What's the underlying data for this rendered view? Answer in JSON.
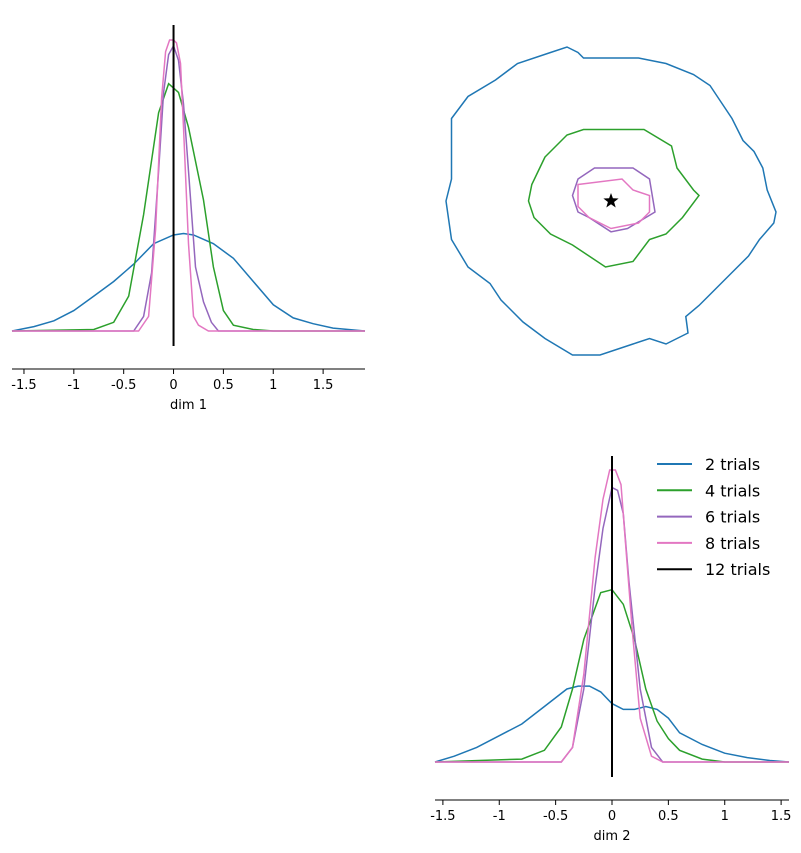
{
  "chart_data": [
    {
      "type": "line",
      "panel": "top-left",
      "xlabel": "dim 1",
      "xlim": [
        -1.62,
        1.92
      ],
      "ylim": [
        0,
        1
      ],
      "xtick_labels": [
        "-1.5",
        "-1",
        "-0.5",
        "0",
        "0.5",
        "1",
        "1.5"
      ],
      "xtick_values": [
        -1.5,
        -1,
        -0.5,
        0,
        0.5,
        1,
        1.5
      ],
      "reference_line": {
        "x": 0,
        "label": "12 trials",
        "color": "#000000"
      },
      "series": [
        {
          "name": "2 trials",
          "color": "#1f77b4",
          "x": [
            -1.62,
            -1.4,
            -1.2,
            -1.0,
            -0.8,
            -0.6,
            -0.4,
            -0.2,
            0.0,
            0.1,
            0.2,
            0.4,
            0.6,
            0.8,
            1.0,
            1.2,
            1.4,
            1.6,
            1.92
          ],
          "y": [
            0.0,
            0.015,
            0.035,
            0.07,
            0.12,
            0.17,
            0.23,
            0.3,
            0.33,
            0.335,
            0.33,
            0.3,
            0.25,
            0.17,
            0.09,
            0.045,
            0.025,
            0.01,
            0.0
          ]
        },
        {
          "name": "4 trials",
          "color": "#2ca02c",
          "x": [
            -1.62,
            -0.8,
            -0.6,
            -0.45,
            -0.3,
            -0.15,
            -0.05,
            0.05,
            0.15,
            0.3,
            0.4,
            0.5,
            0.6,
            0.8,
            1.0,
            1.92
          ],
          "y": [
            0.0,
            0.005,
            0.03,
            0.12,
            0.4,
            0.75,
            0.85,
            0.82,
            0.7,
            0.45,
            0.22,
            0.07,
            0.02,
            0.005,
            0.0,
            0.0
          ]
        },
        {
          "name": "6 trials",
          "color": "#9467bd",
          "x": [
            -1.62,
            -0.4,
            -0.3,
            -0.22,
            -0.15,
            -0.1,
            -0.05,
            0.0,
            0.05,
            0.1,
            0.15,
            0.22,
            0.3,
            0.38,
            0.45,
            1.92
          ],
          "y": [
            0.0,
            0.0,
            0.05,
            0.2,
            0.55,
            0.82,
            0.95,
            0.98,
            0.93,
            0.78,
            0.55,
            0.22,
            0.1,
            0.03,
            0.0,
            0.0
          ]
        },
        {
          "name": "8 trials",
          "color": "#e377c2",
          "x": [
            -1.62,
            -0.35,
            -0.25,
            -0.18,
            -0.12,
            -0.08,
            -0.04,
            0.0,
            0.03,
            0.07,
            0.1,
            0.15,
            0.2,
            0.25,
            0.35,
            1.92
          ],
          "y": [
            0.0,
            0.0,
            0.05,
            0.35,
            0.8,
            0.96,
            1.0,
            1.0,
            0.99,
            0.92,
            0.7,
            0.3,
            0.05,
            0.02,
            0.0,
            0.0
          ]
        }
      ]
    },
    {
      "type": "contour",
      "panel": "top-right",
      "xlim": [
        -1.62,
        1.62
      ],
      "ylim": [
        -1.62,
        1.62
      ],
      "marker": {
        "x": 0,
        "y": 0,
        "shape": "star",
        "color": "#000000"
      },
      "series": [
        {
          "name": "2 trials",
          "color": "#1f77b4",
          "x": [
            -1.45,
            -1.3,
            -1.05,
            -0.85,
            -0.55,
            -0.4,
            -0.3,
            -0.25,
            0.25,
            0.5,
            0.75,
            0.9,
            1.0,
            1.1,
            1.2,
            1.3,
            1.38,
            1.42,
            1.5,
            1.48,
            1.35,
            1.25,
            1.1,
            0.95,
            0.8,
            0.68,
            0.7,
            0.5,
            0.35,
            0.2,
            -0.1,
            -0.35,
            -0.6,
            -0.8,
            -1.0,
            -1.1,
            -1.3,
            -1.45,
            -1.5,
            -1.45,
            -1.45
          ],
          "y": [
            0.75,
            0.95,
            1.1,
            1.25,
            1.35,
            1.4,
            1.35,
            1.3,
            1.3,
            1.25,
            1.15,
            1.05,
            0.9,
            0.75,
            0.55,
            0.45,
            0.3,
            0.1,
            -0.1,
            -0.2,
            -0.35,
            -0.5,
            -0.65,
            -0.8,
            -0.95,
            -1.05,
            -1.2,
            -1.3,
            -1.25,
            -1.3,
            -1.4,
            -1.4,
            -1.25,
            -1.1,
            -0.9,
            -0.75,
            -0.6,
            -0.35,
            0.0,
            0.2,
            0.75
          ]
        },
        {
          "name": "4 trials",
          "color": "#2ca02c",
          "x": [
            -0.6,
            -0.5,
            -0.4,
            -0.25,
            0.3,
            0.55,
            0.6,
            0.75,
            0.8,
            0.65,
            0.5,
            0.35,
            0.2,
            -0.05,
            -0.35,
            -0.55,
            -0.7,
            -0.75,
            -0.72,
            -0.6
          ],
          "y": [
            0.4,
            0.5,
            0.6,
            0.65,
            0.65,
            0.5,
            0.3,
            0.1,
            0.05,
            -0.15,
            -0.3,
            -0.35,
            -0.55,
            -0.6,
            -0.4,
            -0.3,
            -0.15,
            0.0,
            0.15,
            0.4
          ]
        },
        {
          "name": "6 trials",
          "color": "#9467bd",
          "x": [
            -0.3,
            -0.15,
            0.2,
            0.35,
            0.4,
            0.15,
            0.0,
            -0.2,
            -0.3,
            -0.35,
            -0.3
          ],
          "y": [
            0.2,
            0.3,
            0.3,
            0.2,
            -0.1,
            -0.25,
            -0.28,
            -0.15,
            -0.1,
            0.05,
            0.2
          ]
        },
        {
          "name": "8 trials",
          "color": "#e377c2",
          "x": [
            -0.3,
            0.1,
            0.2,
            0.35,
            0.35,
            0.25,
            0.0,
            -0.2,
            -0.3,
            -0.3
          ],
          "y": [
            0.15,
            0.2,
            0.1,
            0.05,
            -0.1,
            -0.2,
            -0.25,
            -0.15,
            -0.05,
            0.15
          ]
        }
      ]
    },
    {
      "type": "line",
      "panel": "bottom-right",
      "xlabel": "dim 2",
      "xlim": [
        -1.57,
        1.57
      ],
      "ylim": [
        0,
        1
      ],
      "xtick_labels": [
        "-1.5",
        "-1",
        "-0.5",
        "0",
        "0.5",
        "1",
        "1.5"
      ],
      "xtick_values": [
        -1.5,
        -1,
        -0.5,
        0,
        0.5,
        1,
        1.5
      ],
      "reference_line": {
        "x": 0,
        "label": "12 trials",
        "color": "#000000"
      },
      "series": [
        {
          "name": "2 trials",
          "color": "#1f77b4",
          "x": [
            -1.57,
            -1.4,
            -1.2,
            -1.0,
            -0.8,
            -0.6,
            -0.4,
            -0.3,
            -0.2,
            -0.1,
            0.0,
            0.1,
            0.2,
            0.3,
            0.4,
            0.5,
            0.6,
            0.8,
            1.0,
            1.2,
            1.4,
            1.57
          ],
          "y": [
            0.0,
            0.02,
            0.05,
            0.09,
            0.13,
            0.19,
            0.25,
            0.26,
            0.26,
            0.24,
            0.2,
            0.18,
            0.18,
            0.19,
            0.18,
            0.15,
            0.1,
            0.06,
            0.03,
            0.015,
            0.005,
            0.0
          ]
        },
        {
          "name": "4 trials",
          "color": "#2ca02c",
          "x": [
            -1.57,
            -0.8,
            -0.6,
            -0.45,
            -0.35,
            -0.25,
            -0.1,
            0.0,
            0.1,
            0.2,
            0.3,
            0.4,
            0.5,
            0.6,
            0.8,
            1.0,
            1.57
          ],
          "y": [
            0.0,
            0.01,
            0.04,
            0.12,
            0.25,
            0.42,
            0.58,
            0.59,
            0.54,
            0.42,
            0.25,
            0.14,
            0.08,
            0.04,
            0.01,
            0.0,
            0.0
          ]
        },
        {
          "name": "6 trials",
          "color": "#9467bd",
          "x": [
            -1.57,
            -0.45,
            -0.35,
            -0.25,
            -0.15,
            -0.08,
            0.0,
            0.05,
            0.1,
            0.15,
            0.25,
            0.35,
            0.45,
            1.57
          ],
          "y": [
            0.0,
            0.0,
            0.05,
            0.25,
            0.6,
            0.8,
            0.94,
            0.93,
            0.85,
            0.62,
            0.25,
            0.05,
            0.0,
            0.0
          ]
        },
        {
          "name": "8 trials",
          "color": "#e377c2",
          "x": [
            -1.57,
            -0.45,
            -0.35,
            -0.25,
            -0.15,
            -0.08,
            -0.02,
            0.03,
            0.08,
            0.12,
            0.18,
            0.25,
            0.35,
            0.45,
            1.57
          ],
          "y": [
            0.0,
            0.0,
            0.05,
            0.3,
            0.7,
            0.9,
            1.0,
            1.0,
            0.95,
            0.75,
            0.45,
            0.15,
            0.02,
            0.0,
            0.0
          ]
        }
      ]
    }
  ],
  "legend": {
    "placement": "top-right of bottom-right panel",
    "entries": [
      {
        "label": "2 trials",
        "color": "#1f77b4"
      },
      {
        "label": "4 trials",
        "color": "#2ca02c"
      },
      {
        "label": "6 trials",
        "color": "#9467bd"
      },
      {
        "label": "8 trials",
        "color": "#e377c2"
      },
      {
        "label": "12 trials",
        "color": "#000000"
      }
    ]
  }
}
